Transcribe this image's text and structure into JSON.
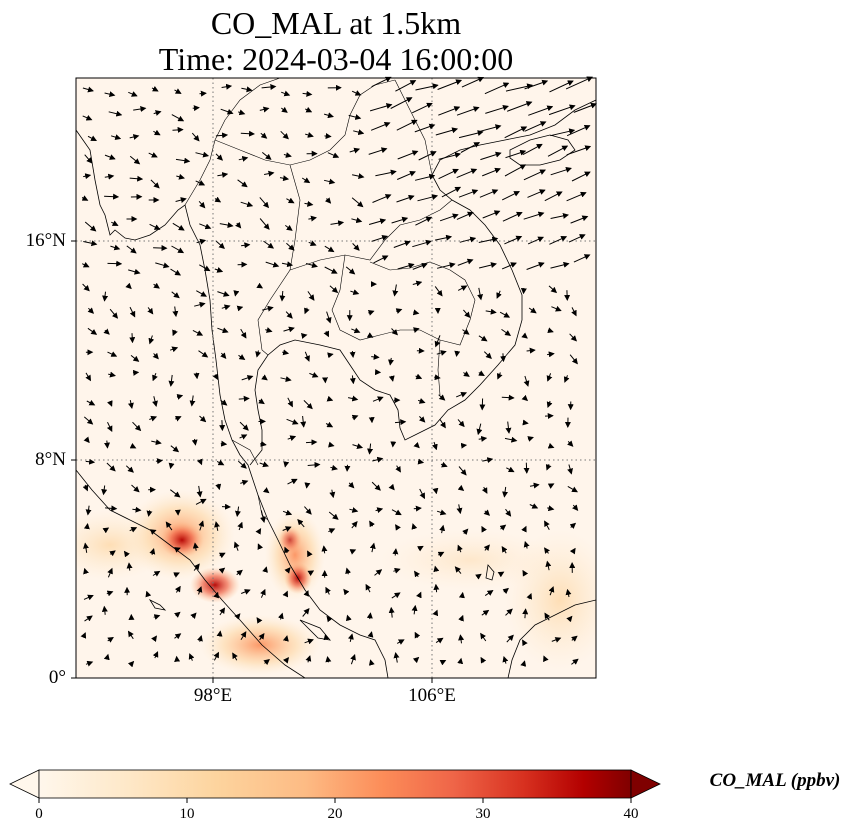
{
  "title": {
    "line1": "CO_MAL at 1.5km",
    "line2": "Time: 2024-03-04 16:00:00"
  },
  "map": {
    "variable": "CO_MAL",
    "level": "1.5km",
    "projection": "PlateCarree",
    "lon_range": [
      93,
      112
    ],
    "lat_range": [
      0,
      22
    ],
    "lat_ticks": [
      {
        "value": 0,
        "label": "0°"
      },
      {
        "value": 8,
        "label": "8°N"
      },
      {
        "value": 16,
        "label": "16°N"
      }
    ],
    "lon_ticks": [
      {
        "value": 98,
        "label": "98°E"
      },
      {
        "value": 106,
        "label": "106°E"
      }
    ],
    "gridlines": "dotted",
    "wind_vectors": true,
    "colormap": "OrRd",
    "background_color": "#fff5eb"
  },
  "colorbar": {
    "label": "CO_MAL (ppbv)",
    "min": 0,
    "max": 40,
    "ticks": [
      "0",
      "10",
      "20",
      "30",
      "40"
    ],
    "extend": "both",
    "colors": [
      "#fff7ec",
      "#fee8c8",
      "#fdd49e",
      "#fdbb84",
      "#fc8d59",
      "#ef6548",
      "#d7301f",
      "#b30000",
      "#7f0000"
    ]
  }
}
